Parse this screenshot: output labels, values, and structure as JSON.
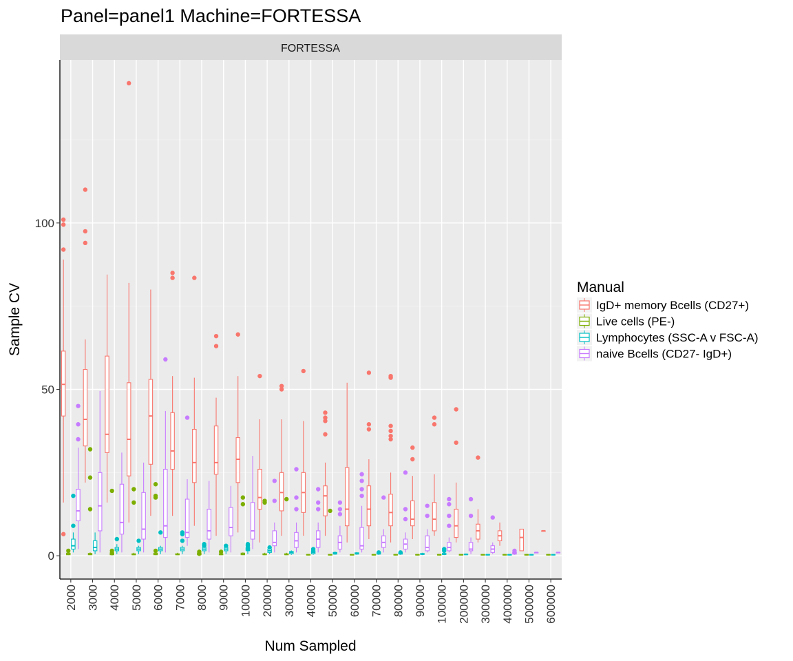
{
  "chart_data": {
    "type": "boxplot",
    "title": "Panel=panel1 Machine=FORTESSA",
    "facet_label": "FORTESSA",
    "xlabel": "Num Sampled",
    "ylabel": "Sample CV",
    "ylim": [
      -7,
      149
    ],
    "yticks": [
      0,
      50,
      100
    ],
    "grid": true,
    "legend": {
      "title": "Manual",
      "position": "right"
    },
    "categories": [
      "2000",
      "3000",
      "4000",
      "5000",
      "6000",
      "7000",
      "8000",
      "9000",
      "10000",
      "20000",
      "30000",
      "40000",
      "50000",
      "60000",
      "70000",
      "80000",
      "90000",
      "100000",
      "200000",
      "300000",
      "400000",
      "500000",
      "600000"
    ],
    "series": [
      {
        "name": "IgD+ memory Bcells (CD27+)",
        "color": "#F8766D",
        "boxes": [
          {
            "min": 16,
            "q1": 42,
            "median": 51.5,
            "q3": 61.5,
            "max": 89,
            "outliers": [
              92,
              99.5,
              101,
              6.5
            ]
          },
          {
            "min": 22,
            "q1": 33,
            "median": 41,
            "q3": 56,
            "max": 65,
            "outliers": [
              94,
              97.5,
              110
            ]
          },
          {
            "min": 16,
            "q1": 31,
            "median": 36.5,
            "q3": 60,
            "max": 84.5,
            "outliers": []
          },
          {
            "min": 10,
            "q1": 24,
            "median": 35,
            "q3": 52,
            "max": 82,
            "outliers": [
              142
            ]
          },
          {
            "min": 12,
            "q1": 27.5,
            "median": 42,
            "q3": 53,
            "max": 80,
            "outliers": []
          },
          {
            "min": 12,
            "q1": 26,
            "median": 31.5,
            "q3": 43,
            "max": 54,
            "outliers": [
              83.5,
              85
            ]
          },
          {
            "min": 9,
            "q1": 22,
            "median": 28,
            "q3": 38,
            "max": 53.5,
            "outliers": [
              83.5
            ]
          },
          {
            "min": 6,
            "q1": 24.5,
            "median": 28,
            "q3": 39,
            "max": 47.5,
            "outliers": [
              63,
              66
            ]
          },
          {
            "min": 7,
            "q1": 22,
            "median": 29,
            "q3": 35.5,
            "max": 54,
            "outliers": [
              66.5
            ]
          },
          {
            "min": 4,
            "q1": 14,
            "median": 17.5,
            "q3": 26,
            "max": 41,
            "outliers": [
              54
            ]
          },
          {
            "min": 6,
            "q1": 13.5,
            "median": 19,
            "q3": 25,
            "max": 41,
            "outliers": [
              50,
              51
            ]
          },
          {
            "min": 6,
            "q1": 13,
            "median": 19,
            "q3": 25,
            "max": 40.5,
            "outliers": [
              55.5
            ]
          },
          {
            "min": 6,
            "q1": 12,
            "median": 18,
            "q3": 21,
            "max": 28,
            "outliers": [
              36.5,
              40.5,
              41.5,
              43
            ]
          },
          {
            "min": 4,
            "q1": 9,
            "median": 14,
            "q3": 26.5,
            "max": 52,
            "outliers": []
          },
          {
            "min": 5,
            "q1": 9,
            "median": 14,
            "q3": 21,
            "max": 29,
            "outliers": [
              38,
              39.5,
              55
            ]
          },
          {
            "min": 4,
            "q1": 9,
            "median": 13,
            "q3": 18.5,
            "max": 25,
            "outliers": [
              35,
              36,
              37.5,
              39,
              53.5,
              54
            ]
          },
          {
            "min": 5,
            "q1": 9,
            "median": 11,
            "q3": 16.5,
            "max": 24,
            "outliers": [
              29,
              32.5
            ]
          },
          {
            "min": 6,
            "q1": 7.5,
            "median": 11,
            "q3": 16,
            "max": 24.5,
            "outliers": [
              39.5,
              41.5
            ]
          },
          {
            "min": 4,
            "q1": 5.5,
            "median": 9,
            "q3": 14,
            "max": 22,
            "outliers": [
              34,
              44
            ]
          },
          {
            "min": 4,
            "q1": 5,
            "median": 7.5,
            "q3": 9.5,
            "max": 14,
            "outliers": [
              29.5
            ]
          },
          {
            "min": 3,
            "q1": 4.5,
            "median": 6,
            "q3": 7.5,
            "max": 10,
            "outliers": []
          },
          {
            "min": 1.5,
            "q1": 1.5,
            "median": 5.5,
            "q3": 8,
            "max": 8,
            "outliers": []
          },
          {
            "min": 7.5,
            "q1": 7.5,
            "median": 7.5,
            "q3": 7.5,
            "max": 7.5,
            "outliers": []
          }
        ]
      },
      {
        "name": "Live cells (PE-)",
        "color": "#7CAE00",
        "boxes": [
          {
            "min": 0.2,
            "q1": 0.3,
            "median": 0.5,
            "q3": 0.8,
            "max": 1.2,
            "outliers": [
              1.5
            ]
          },
          {
            "min": 0.2,
            "q1": 0.3,
            "median": 0.5,
            "q3": 0.7,
            "max": 1.0,
            "outliers": [
              14,
              23.5,
              32
            ]
          },
          {
            "min": 0.2,
            "q1": 0.3,
            "median": 0.5,
            "q3": 0.8,
            "max": 1.2,
            "outliers": [
              0.8,
              1.5,
              19.5
            ]
          },
          {
            "min": 0.2,
            "q1": 0.3,
            "median": 0.4,
            "q3": 0.6,
            "max": 0.9,
            "outliers": [
              16,
              20
            ]
          },
          {
            "min": 0.2,
            "q1": 0.3,
            "median": 0.5,
            "q3": 0.8,
            "max": 1.2,
            "outliers": [
              1.5,
              17.5,
              18,
              21.5
            ]
          },
          {
            "min": 0.2,
            "q1": 0.3,
            "median": 0.4,
            "q3": 0.6,
            "max": 0.9,
            "outliers": []
          },
          {
            "min": 0.2,
            "q1": 0.3,
            "median": 0.5,
            "q3": 0.8,
            "max": 1.0,
            "outliers": [
              0.6,
              1.2
            ]
          },
          {
            "min": 0.2,
            "q1": 0.3,
            "median": 0.4,
            "q3": 0.6,
            "max": 0.9,
            "outliers": [
              1.2
            ]
          },
          {
            "min": 0.2,
            "q1": 0.3,
            "median": 0.5,
            "q3": 0.8,
            "max": 1.0,
            "outliers": [
              15.5,
              17.5
            ]
          },
          {
            "min": 0.2,
            "q1": 0.3,
            "median": 0.4,
            "q3": 0.6,
            "max": 0.9,
            "outliers": [
              16,
              16.5
            ]
          },
          {
            "min": 0.2,
            "q1": 0.3,
            "median": 0.4,
            "q3": 0.6,
            "max": 0.9,
            "outliers": [
              17
            ]
          },
          {
            "min": 0.1,
            "q1": 0.2,
            "median": 0.3,
            "q3": 0.4,
            "max": 0.5,
            "outliers": []
          },
          {
            "min": 0.1,
            "q1": 0.2,
            "median": 0.3,
            "q3": 0.4,
            "max": 0.5,
            "outliers": [
              13.5
            ]
          },
          {
            "min": 0.1,
            "q1": 0.2,
            "median": 0.3,
            "q3": 0.4,
            "max": 0.5,
            "outliers": []
          },
          {
            "min": 0.1,
            "q1": 0.2,
            "median": 0.3,
            "q3": 0.4,
            "max": 0.5,
            "outliers": []
          },
          {
            "min": 0.1,
            "q1": 0.2,
            "median": 0.3,
            "q3": 0.4,
            "max": 0.5,
            "outliers": []
          },
          {
            "min": 0.1,
            "q1": 0.2,
            "median": 0.3,
            "q3": 0.4,
            "max": 0.5,
            "outliers": []
          },
          {
            "min": 0.1,
            "q1": 0.2,
            "median": 0.3,
            "q3": 0.4,
            "max": 0.5,
            "outliers": []
          },
          {
            "min": 0.1,
            "q1": 0.2,
            "median": 0.3,
            "q3": 0.4,
            "max": 0.5,
            "outliers": []
          },
          {
            "min": 0.1,
            "q1": 0.2,
            "median": 0.3,
            "q3": 0.4,
            "max": 0.5,
            "outliers": []
          },
          {
            "min": 0.1,
            "q1": 0.2,
            "median": 0.3,
            "q3": 0.4,
            "max": 0.5,
            "outliers": []
          },
          {
            "min": 0.1,
            "q1": 0.2,
            "median": 0.3,
            "q3": 0.4,
            "max": 0.5,
            "outliers": []
          },
          {
            "min": 0.1,
            "q1": 0.2,
            "median": 0.3,
            "q3": 0.4,
            "max": 0.5,
            "outliers": []
          }
        ]
      },
      {
        "name": "Lymphocytes (SSC-A v FSC-A)",
        "color": "#00BFC4",
        "boxes": [
          {
            "min": 1,
            "q1": 2,
            "median": 3,
            "q3": 5,
            "max": 7,
            "outliers": [
              9,
              18
            ]
          },
          {
            "min": 0.5,
            "q1": 1.5,
            "median": 2.5,
            "q3": 4.5,
            "max": 7,
            "outliers": []
          },
          {
            "min": 0.5,
            "q1": 1.5,
            "median": 2,
            "q3": 2.5,
            "max": 3.5,
            "outliers": [
              5
            ]
          },
          {
            "min": 0.5,
            "q1": 1.5,
            "median": 2,
            "q3": 2.5,
            "max": 3,
            "outliers": [
              4.5
            ]
          },
          {
            "min": 0.5,
            "q1": 1.5,
            "median": 2,
            "q3": 2.5,
            "max": 3,
            "outliers": [
              7
            ]
          },
          {
            "min": 0.5,
            "q1": 1.5,
            "median": 2,
            "q3": 2.5,
            "max": 3,
            "outliers": [
              4.5,
              6.5,
              7
            ]
          },
          {
            "min": 0.5,
            "q1": 1.5,
            "median": 2,
            "q3": 2.5,
            "max": 3,
            "outliers": [
              3,
              3.5
            ]
          },
          {
            "min": 0.5,
            "q1": 1.5,
            "median": 2,
            "q3": 2.5,
            "max": 3,
            "outliers": [
              3
            ]
          },
          {
            "min": 0.5,
            "q1": 1.5,
            "median": 2,
            "q3": 2.5,
            "max": 3,
            "outliers": [
              2,
              3,
              3.5
            ]
          },
          {
            "min": 0.5,
            "q1": 1,
            "median": 1.5,
            "q3": 2,
            "max": 2.5,
            "outliers": [
              2.5
            ]
          },
          {
            "min": 0.3,
            "q1": 0.6,
            "median": 1,
            "q3": 1.3,
            "max": 1.6,
            "outliers": []
          },
          {
            "min": 0.3,
            "q1": 0.6,
            "median": 1,
            "q3": 1.3,
            "max": 1.6,
            "outliers": [
              1.5,
              2
            ]
          },
          {
            "min": 0.3,
            "q1": 0.5,
            "median": 0.8,
            "q3": 1,
            "max": 1.3,
            "outliers": []
          },
          {
            "min": 0.3,
            "q1": 0.5,
            "median": 0.7,
            "q3": 0.9,
            "max": 1.1,
            "outliers": []
          },
          {
            "min": 0.3,
            "q1": 0.5,
            "median": 0.7,
            "q3": 0.9,
            "max": 1.1,
            "outliers": [
              1
            ]
          },
          {
            "min": 0.3,
            "q1": 0.5,
            "median": 0.7,
            "q3": 0.9,
            "max": 1.1,
            "outliers": [
              1
            ]
          },
          {
            "min": 0.2,
            "q1": 0.4,
            "median": 0.5,
            "q3": 0.7,
            "max": 0.9,
            "outliers": []
          },
          {
            "min": 0.2,
            "q1": 0.4,
            "median": 0.5,
            "q3": 0.7,
            "max": 0.9,
            "outliers": [
              1.5,
              2
            ]
          },
          {
            "min": 0.2,
            "q1": 0.3,
            "median": 0.4,
            "q3": 0.5,
            "max": 0.7,
            "outliers": []
          },
          {
            "min": 0.1,
            "q1": 0.2,
            "median": 0.3,
            "q3": 0.4,
            "max": 0.5,
            "outliers": []
          },
          {
            "min": 0.1,
            "q1": 0.2,
            "median": 0.3,
            "q3": 0.4,
            "max": 0.5,
            "outliers": []
          },
          {
            "min": 0.1,
            "q1": 0.2,
            "median": 0.3,
            "q3": 0.4,
            "max": 0.5,
            "outliers": []
          },
          {
            "min": 0.1,
            "q1": 0.2,
            "median": 0.3,
            "q3": 0.4,
            "max": 0.5,
            "outliers": []
          }
        ]
      },
      {
        "name": "naive Bcells (CD27- IgD+)",
        "color": "#C77CFF",
        "boxes": [
          {
            "min": 2,
            "q1": 10.5,
            "median": 13.5,
            "q3": 20,
            "max": 32.5,
            "outliers": [
              35,
              39.5,
              45
            ]
          },
          {
            "min": 1,
            "q1": 7.5,
            "median": 15,
            "q3": 25,
            "max": 49.5,
            "outliers": []
          },
          {
            "min": 1,
            "q1": 6.5,
            "median": 10,
            "q3": 21.5,
            "max": 31,
            "outliers": []
          },
          {
            "min": 1,
            "q1": 5,
            "median": 8,
            "q3": 19,
            "max": 28,
            "outliers": []
          },
          {
            "min": 1,
            "q1": 5.5,
            "median": 9,
            "q3": 26,
            "max": 43.5,
            "outliers": [
              59
            ]
          },
          {
            "min": 3,
            "q1": 5.5,
            "median": 7,
            "q3": 17,
            "max": 23,
            "outliers": [
              41.5
            ]
          },
          {
            "min": 1,
            "q1": 5,
            "median": 7.5,
            "q3": 14,
            "max": 22.5,
            "outliers": []
          },
          {
            "min": 1,
            "q1": 6,
            "median": 8.5,
            "q3": 14.5,
            "max": 21,
            "outliers": []
          },
          {
            "min": 2,
            "q1": 5,
            "median": 7.5,
            "q3": 16,
            "max": 30,
            "outliers": []
          },
          {
            "min": 1,
            "q1": 3,
            "median": 4,
            "q3": 7.5,
            "max": 10,
            "outliers": [
              16.5,
              22.5
            ]
          },
          {
            "min": 1,
            "q1": 2.5,
            "median": 4.5,
            "q3": 7,
            "max": 10,
            "outliers": [
              14,
              17.5,
              26
            ]
          },
          {
            "min": 1,
            "q1": 2.5,
            "median": 5,
            "q3": 7.5,
            "max": 10,
            "outliers": [
              14,
              16,
              20
            ]
          },
          {
            "min": 1,
            "q1": 2,
            "median": 4,
            "q3": 6,
            "max": 9,
            "outliers": [
              12.5,
              14,
              16
            ]
          },
          {
            "min": 1,
            "q1": 2,
            "median": 3,
            "q3": 8.5,
            "max": 15,
            "outliers": [
              18,
              20,
              22.5,
              24.5
            ]
          },
          {
            "min": 1,
            "q1": 2.5,
            "median": 4,
            "q3": 6,
            "max": 8,
            "outliers": [
              17.5
            ]
          },
          {
            "min": 1,
            "q1": 2,
            "median": 3.5,
            "q3": 5,
            "max": 7,
            "outliers": [
              11,
              14,
              25
            ]
          },
          {
            "min": 1,
            "q1": 1.5,
            "median": 2.5,
            "q3": 6,
            "max": 8,
            "outliers": [
              12,
              15
            ]
          },
          {
            "min": 1,
            "q1": 1.5,
            "median": 2.5,
            "q3": 4,
            "max": 5.5,
            "outliers": [
              9,
              12,
              15.5,
              17
            ]
          },
          {
            "min": 0.5,
            "q1": 1.5,
            "median": 2,
            "q3": 4,
            "max": 5.5,
            "outliers": [
              12,
              17
            ]
          },
          {
            "min": 0.5,
            "q1": 1,
            "median": 2,
            "q3": 3,
            "max": 4,
            "outliers": [
              11.5
            ]
          },
          {
            "min": 0.3,
            "q1": 0.5,
            "median": 0.8,
            "q3": 1,
            "max": 1.2,
            "outliers": [
              1,
              1.5
            ]
          },
          {
            "min": 1,
            "q1": 1,
            "median": 1,
            "q3": 1,
            "max": 1,
            "outliers": []
          },
          {
            "min": 1,
            "q1": 1,
            "median": 1,
            "q3": 1,
            "max": 1,
            "outliers": []
          }
        ]
      }
    ]
  }
}
